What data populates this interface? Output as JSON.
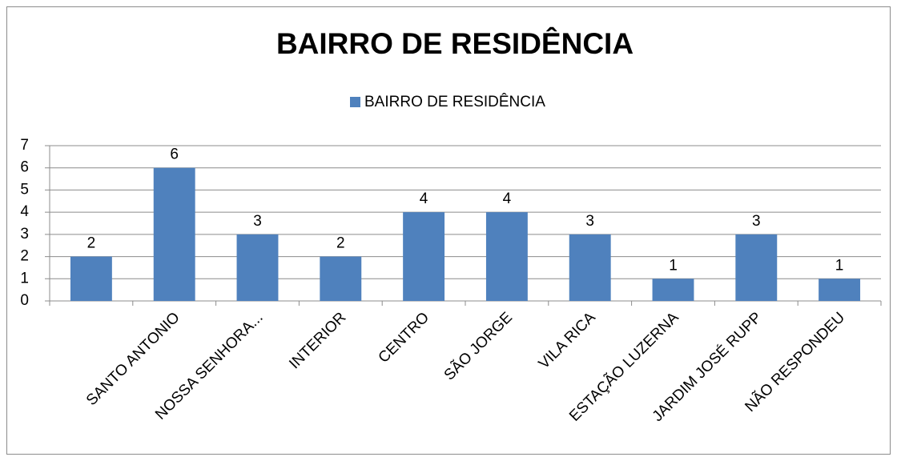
{
  "chart_data": {
    "type": "bar",
    "title": "BAIRRO DE RESIDÊNCIA",
    "categories": [
      null,
      "SANTO ANTONIO",
      "NOSSA SENHORA...",
      "INTERIOR",
      "CENTRO",
      "SÃO JORGE",
      "VILA RICA",
      "ESTAÇÃO LUZERNA",
      "JARDIM JOSÉ RUPP",
      "NÃO RESPONDEU"
    ],
    "series": [
      {
        "name": "BAIRRO DE RESIDÊNCIA",
        "color": "#4f81bd",
        "values": [
          2,
          6,
          3,
          2,
          4,
          4,
          3,
          1,
          3,
          1
        ]
      }
    ],
    "ylim": [
      0,
      7
    ],
    "yticks": [
      0,
      1,
      2,
      3,
      4,
      5,
      6,
      7
    ],
    "grid": true,
    "legend": "top"
  }
}
